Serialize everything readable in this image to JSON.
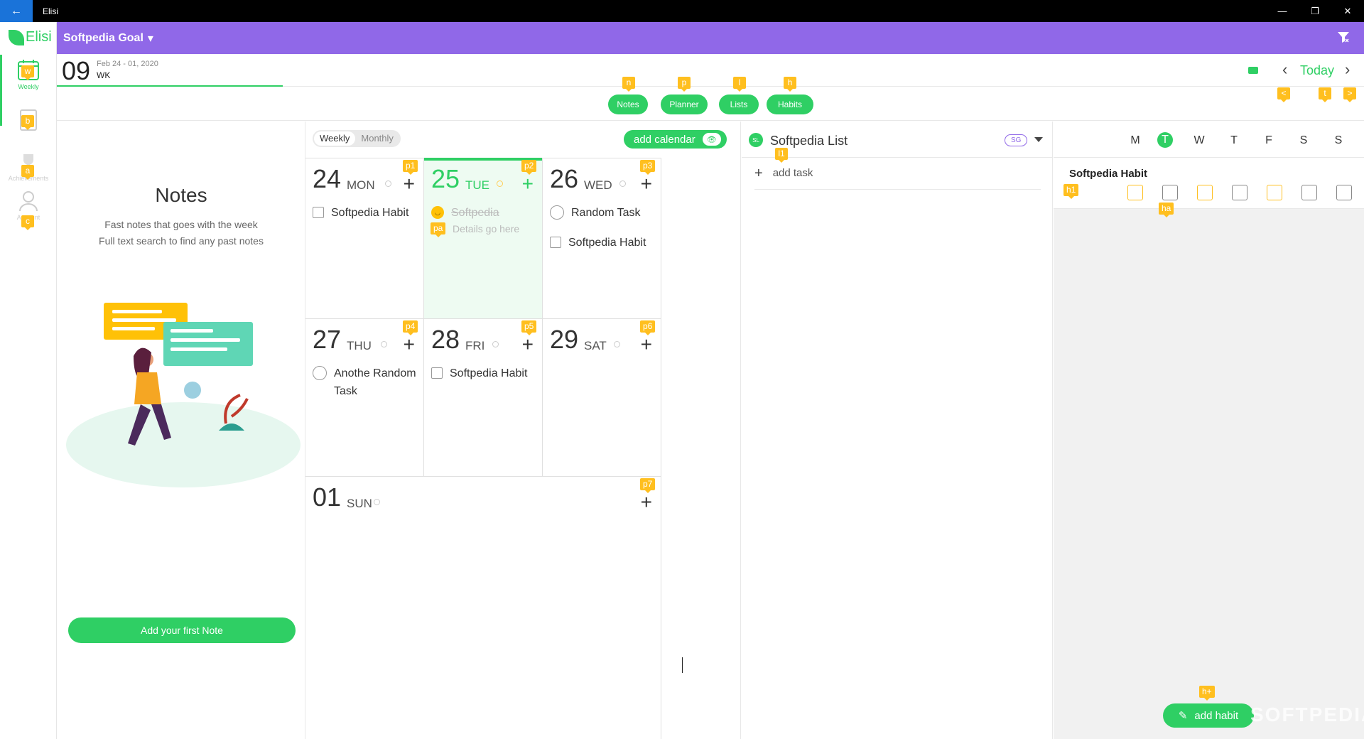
{
  "window": {
    "title": "Elisi",
    "back_icon": "arrow-left-icon",
    "minimize": "—",
    "restore": "❐",
    "close": "✕"
  },
  "header": {
    "goal_title": "Softpedia Goal",
    "accent": "#9068e8",
    "green": "#2fcf64"
  },
  "sidebar": {
    "logo": "Elisi",
    "items": [
      {
        "label": "Weekly",
        "icon": "calendar-icon",
        "date": "25",
        "shortcut": "w"
      },
      {
        "label": "",
        "icon": "document-icon",
        "shortcut": "b"
      },
      {
        "label": "Achievements",
        "icon": "trophy-icon",
        "shortcut": "a"
      },
      {
        "label": "Account",
        "icon": "user-icon",
        "shortcut": "c"
      }
    ]
  },
  "week": {
    "number": "09",
    "range": "Feb 24 - 01, 2020",
    "label": "WK",
    "today_label": "Today",
    "prev_shortcut": "<",
    "today_shortcut": "t",
    "next_shortcut": ">"
  },
  "tabs": [
    {
      "label": "Notes",
      "shortcut": "n"
    },
    {
      "label": "Planner",
      "shortcut": "p"
    },
    {
      "label": "Lists",
      "shortcut": "l"
    },
    {
      "label": "Habits",
      "shortcut": "h"
    }
  ],
  "notes": {
    "title": "Notes",
    "line1": "Fast notes that goes with the week",
    "line2": "Full text search to find any past notes",
    "add_button": "Add your first Note"
  },
  "planner": {
    "weekly": "Weekly",
    "monthly": "Monthly",
    "add_calendar": "add calendar",
    "days": [
      {
        "num": "24",
        "name": "MON",
        "shortcut": "p1",
        "tasks": [
          {
            "type": "check",
            "text": "Softpedia Habit"
          }
        ]
      },
      {
        "num": "25",
        "name": "TUE",
        "shortcut": "p2",
        "tasks": [
          {
            "type": "done",
            "text": "Softpedia",
            "details": "Details go here",
            "shortcut": "pa"
          }
        ]
      },
      {
        "num": "26",
        "name": "WED",
        "shortcut": "p3",
        "tasks": [
          {
            "type": "radio",
            "text": "Random Task"
          },
          {
            "type": "check",
            "text": "Softpedia Habit"
          }
        ]
      },
      {
        "num": "27",
        "name": "THU",
        "shortcut": "p4",
        "tasks": [
          {
            "type": "radio",
            "text": "Anothe Random Task"
          }
        ]
      },
      {
        "num": "28",
        "name": "FRI",
        "shortcut": "p5",
        "tasks": [
          {
            "type": "check",
            "text": "Softpedia Habit"
          }
        ]
      },
      {
        "num": "29",
        "name": "SAT",
        "shortcut": "p6",
        "tasks": []
      },
      {
        "num": "01",
        "name": "SUN",
        "shortcut": "p7",
        "tasks": []
      }
    ]
  },
  "list": {
    "avatar": "SL",
    "name": "Softpedia List",
    "tag": "SG",
    "shortcut": "l1",
    "add_task": "add task"
  },
  "habits": {
    "days": [
      "M",
      "T",
      "W",
      "T",
      "F",
      "S",
      "S"
    ],
    "active_day": "T",
    "habit_name": "Softpedia Habit",
    "habit_shortcut": "h1",
    "cell_shortcut": "ha",
    "add_habit": "add habit",
    "add_shortcut": "h+"
  },
  "watermark": "SOFTPEDIA"
}
